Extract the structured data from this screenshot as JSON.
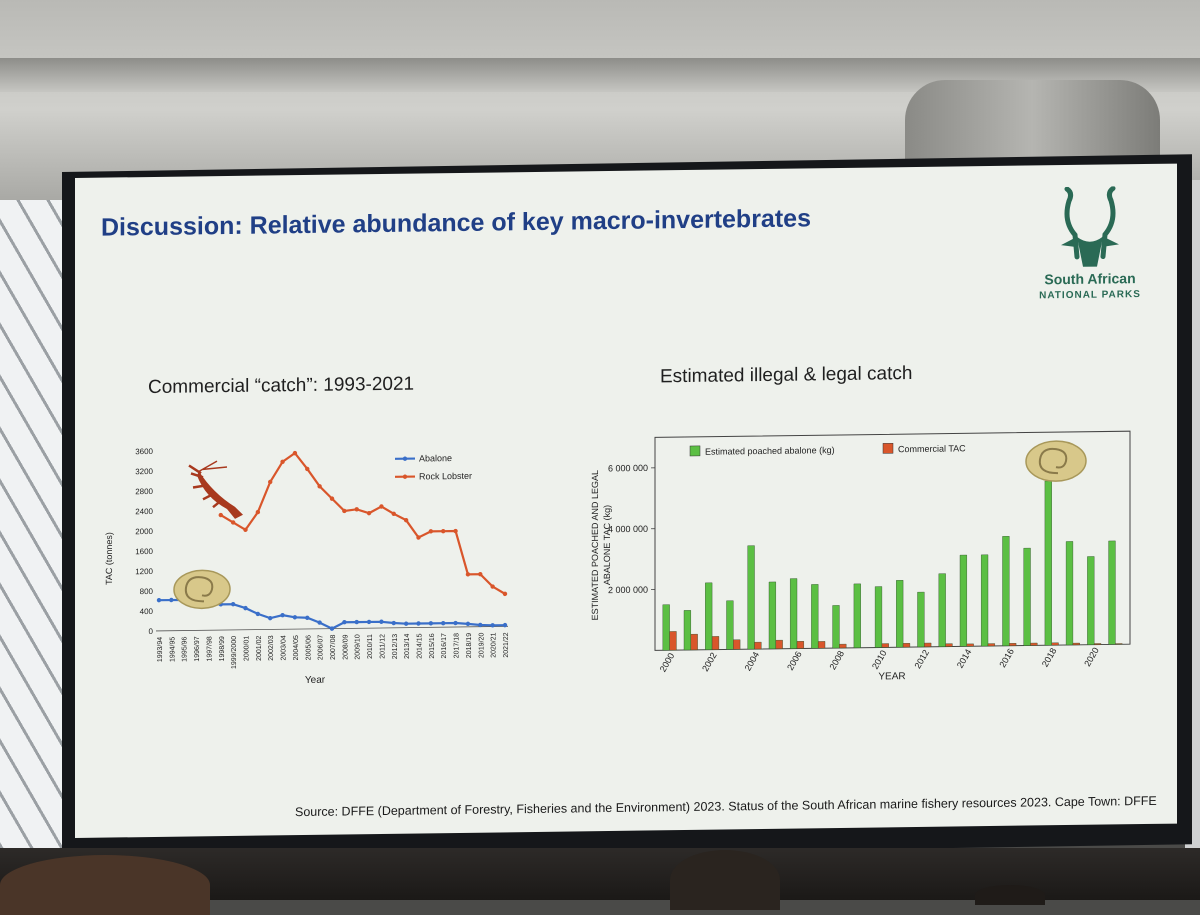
{
  "slide": {
    "title": "Discussion: Relative abundance of key macro-invertebrates",
    "logo": {
      "line1": "South African",
      "line2": "NATIONAL PARKS"
    },
    "left_subtitle": "Commercial “catch”: 1993-2021",
    "right_subtitle": "Estimated illegal & legal catch",
    "source": "Source: DFFE (Department of Forestry, Fisheries and the Environment) 2023. Status of the South African marine fishery resources 2023. Cape Town: DFFE"
  },
  "colors": {
    "title": "#203f86",
    "abalone": "#3a6fc9",
    "rock_lobster": "#d9562b",
    "poached": "#5bbf43",
    "commercial": "#d9562b"
  },
  "chart_data": [
    {
      "type": "line",
      "xlabel": "Year",
      "ylabel": "TAC (tonnes)",
      "ylim": [
        0,
        3600
      ],
      "yticks": [
        0,
        400,
        800,
        1200,
        1600,
        2000,
        2400,
        2800,
        3200,
        3600
      ],
      "categories": [
        "1993/94",
        "1994/95",
        "1995/96",
        "1996/97",
        "1997/98",
        "1998/99",
        "1999/2000",
        "2000/01",
        "2001/02",
        "2002/03",
        "2003/04",
        "2004/05",
        "2005/06",
        "2006/07",
        "2007/08",
        "2008/09",
        "2009/10",
        "2010/11",
        "2011/12",
        "2012/13",
        "2013/14",
        "2014/15",
        "2015/16",
        "2016/17",
        "2017/18",
        "2018/19",
        "2019/20",
        "2020/21",
        "2021/22"
      ],
      "series": [
        {
          "name": "Abalone",
          "values": [
            615,
            615,
            615,
            560,
            530,
            515,
            515,
            433,
            314,
            226,
            282,
            237,
            223,
            125,
            0,
            125,
            125,
            125,
            125,
            96,
            80,
            80,
            80,
            80,
            80,
            60,
            35,
            25,
            25
          ]
        },
        {
          "name": "Rock Lobster",
          "values": [
            null,
            null,
            null,
            null,
            null,
            2300,
            2150,
            2000,
            2350,
            2950,
            3350,
            3520,
            3200,
            2850,
            2600,
            2350,
            2380,
            2300,
            2430,
            2280,
            2150,
            1800,
            1920,
            1920,
            1920,
            1050,
            1050,
            800,
            650
          ]
        }
      ]
    },
    {
      "type": "bar",
      "xlabel": "YEAR",
      "ylabel": "ESTIMATED POACHED AND LEGAL ABALONE TAC (kg)",
      "ylim": [
        0,
        7000000
      ],
      "yticks": [
        "2 000 000",
        "4 000 000",
        "6 000 000"
      ],
      "xticks": [
        "2000",
        "2002",
        "2004",
        "2006",
        "2008",
        "2010",
        "2012",
        "2014",
        "2016",
        "2018",
        "2020"
      ],
      "categories": [
        2000,
        2001,
        2002,
        2003,
        2004,
        2005,
        2006,
        2007,
        2008,
        2009,
        2010,
        2011,
        2012,
        2013,
        2014,
        2015,
        2016,
        2017,
        2018,
        2019,
        2020,
        2021
      ],
      "series": [
        {
          "name": "Estimated poached abalone (kg)",
          "values": [
            1500000,
            1300000,
            2200000,
            1600000,
            3400000,
            2200000,
            2300000,
            2100000,
            1400000,
            2100000,
            2000000,
            2200000,
            1800000,
            2400000,
            3000000,
            3000000,
            3600000,
            3200000,
            5400000,
            3400000,
            2900000,
            3400000
          ]
        },
        {
          "name": "Commercial TAC",
          "values": [
            615000,
            515000,
            433000,
            314000,
            226000,
            282000,
            237000,
            223000,
            125000,
            0,
            125000,
            125000,
            125000,
            96000,
            80000,
            80000,
            80000,
            80000,
            80000,
            60000,
            35000,
            25000
          ]
        }
      ]
    }
  ]
}
